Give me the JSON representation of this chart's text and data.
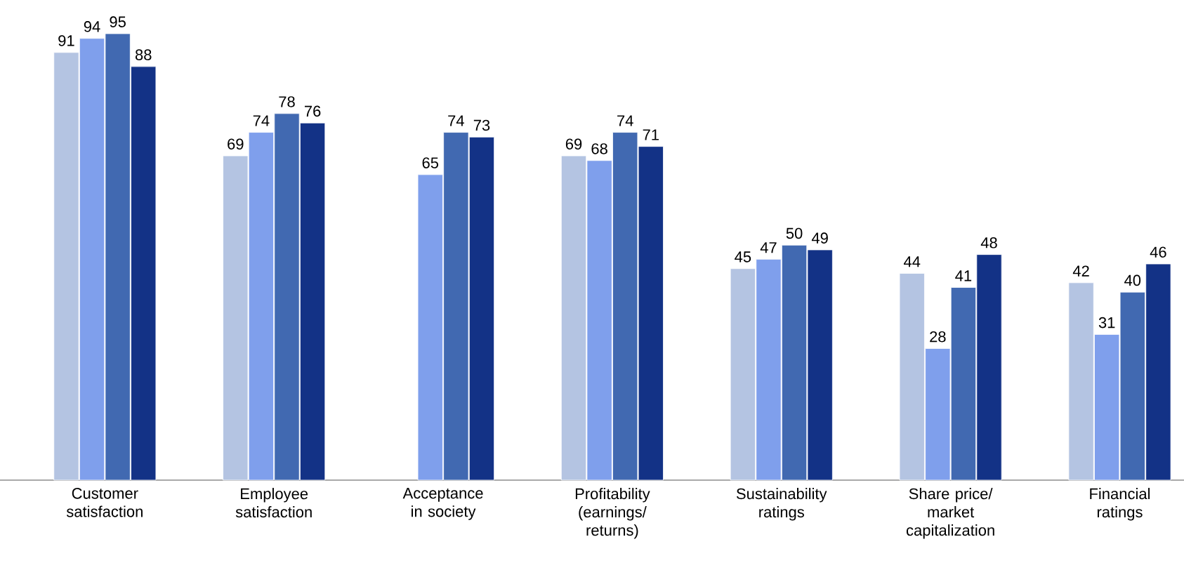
{
  "chart_data": {
    "type": "bar",
    "categories": [
      "Customer satisfaction",
      "Employee satisfaction",
      "Acceptance in society",
      "Profitability (earnings/ returns)",
      "Sustainability ratings",
      "Share price/ market capitalization",
      "Financial ratings"
    ],
    "series": [
      {
        "color": "#b4c4e2",
        "values": [
          91,
          69,
          null,
          69,
          45,
          44,
          42
        ]
      },
      {
        "color": "#7f9fec",
        "values": [
          94,
          74,
          65,
          68,
          47,
          28,
          31
        ]
      },
      {
        "color": "#4169b1",
        "values": [
          95,
          78,
          74,
          74,
          50,
          41,
          40
        ]
      },
      {
        "color": "#133286",
        "values": [
          88,
          76,
          73,
          71,
          49,
          48,
          46
        ]
      }
    ],
    "ylim": [
      0,
      95
    ],
    "data_labels": true
  }
}
